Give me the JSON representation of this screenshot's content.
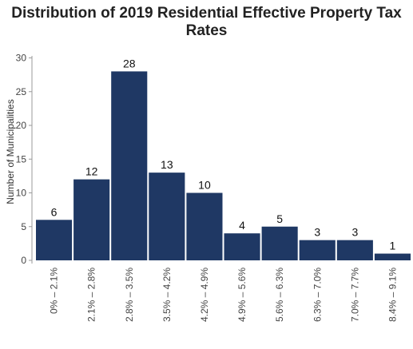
{
  "chart_data": {
    "type": "bar",
    "title_lines": [
      "Distribution of 2019 Residential Effective Property Tax",
      "Rates"
    ],
    "xlabel": "",
    "ylabel": "Number of Municipalities",
    "categories": [
      "0% – 2.1%",
      "2.1% – 2.8%",
      "2.8% – 3.5%",
      "3.5% – 4.2%",
      "4.2% – 4.9%",
      "4.9% – 5.6%",
      "5.6% – 6.3%",
      "6.3% – 7.0%",
      "7.0% – 7.7%",
      "8.4% – 9.1%"
    ],
    "values": [
      6,
      12,
      28,
      13,
      10,
      4,
      5,
      3,
      3,
      1
    ],
    "ylim": [
      0,
      30
    ],
    "yticks": [
      "0",
      "5",
      "10",
      "15",
      "20",
      "25",
      "30"
    ],
    "grid": false,
    "bar_color": "#1f3864"
  }
}
